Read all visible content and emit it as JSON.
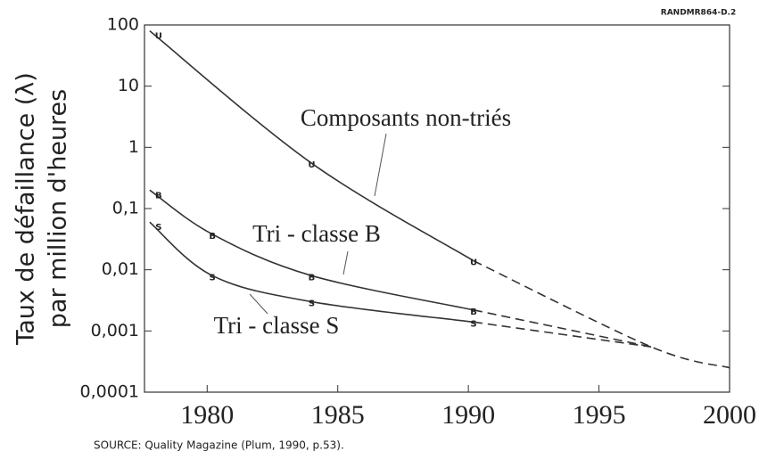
{
  "chart_data": {
    "type": "line",
    "y_axis_label": [
      "Taux de défaillance (λ)",
      "par million d'heures"
    ],
    "log_y": true,
    "xlim": [
      1977.6,
      2000
    ],
    "xticks": [
      1980,
      1985,
      1990,
      1995,
      2000
    ],
    "ylim": [
      0.0001,
      100
    ],
    "yticks": [
      {
        "value": 0.0001,
        "label": "0,0001"
      },
      {
        "value": 0.001,
        "label": "0,001"
      },
      {
        "value": 0.01,
        "label": "0,01"
      },
      {
        "value": 0.1,
        "label": "0,1"
      },
      1,
      10,
      100
    ],
    "color": "#333333",
    "series": [
      {
        "name": "Composants non-triés",
        "marker": "U",
        "x": [
          1977.8,
          1984,
          1990.2,
          1997,
          2000
        ],
        "values": [
          80,
          0.55,
          0.014,
          0.00055,
          0.00025
        ],
        "projected_from_index": 2
      },
      {
        "name": "Tri - classe B",
        "marker": "B",
        "x": [
          1977.8,
          1980.2,
          1984,
          1990.2,
          1997
        ],
        "values": [
          0.2,
          0.038,
          0.008,
          0.0022,
          0.00055
        ],
        "projected_from_index": 3
      },
      {
        "name": "Tri - classe S",
        "marker": "S",
        "x": [
          1977.8,
          1980.2,
          1984,
          1990.2,
          1997
        ],
        "values": [
          0.06,
          0.008,
          0.003,
          0.0014,
          0.00055
        ],
        "projected_from_index": 3
      }
    ],
    "source_note": "RANDMR864-D.2",
    "source": "SOURCE:  Quality Magazine (Plum, 1990, p.53)."
  }
}
